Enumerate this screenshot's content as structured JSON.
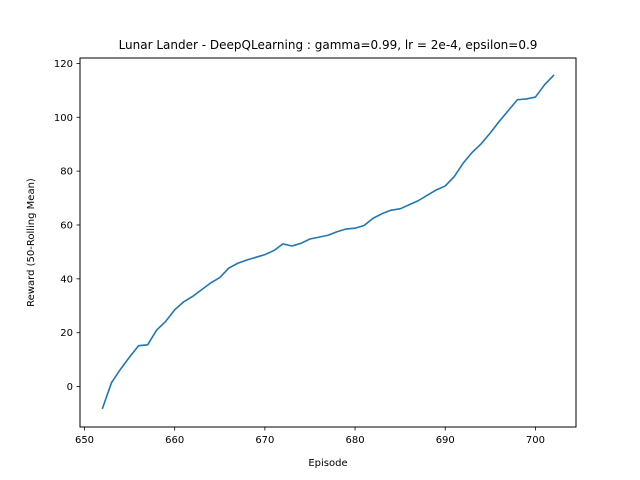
{
  "chart_data": {
    "type": "line",
    "title": "Lunar Lander - DeepQLearning : gamma=0.99, lr = 2e-4, epsilon=0.9",
    "xlabel": "Episode",
    "ylabel": "Reward (50-Rolling Mean)",
    "xlim": [
      649.5,
      704.5
    ],
    "ylim": [
      -15,
      122
    ],
    "xticks": [
      650,
      660,
      670,
      680,
      690,
      700
    ],
    "yticks": [
      0,
      20,
      40,
      60,
      80,
      100,
      120
    ],
    "grid": false,
    "legend": "none",
    "series": [
      {
        "color": "#1f77b4",
        "x": [
          652,
          653,
          654,
          655,
          656,
          657,
          658,
          659,
          660,
          661,
          662,
          663,
          664,
          665,
          666,
          667,
          668,
          669,
          670,
          671,
          672,
          673,
          674,
          675,
          676,
          677,
          678,
          679,
          680,
          681,
          682,
          683,
          684,
          685,
          686,
          687,
          688,
          689,
          690,
          691,
          692,
          693,
          694,
          695,
          696,
          697,
          698,
          699,
          700,
          701,
          702
        ],
        "y": [
          -8,
          1.5,
          6.5,
          11,
          15.2,
          15.5,
          21,
          24.2,
          28.5,
          31.5,
          33.5,
          36,
          38.5,
          40.5,
          44,
          45.8,
          47,
          48,
          49,
          50.5,
          53,
          52.2,
          53.2,
          54.8,
          55.5,
          56.2,
          57.5,
          58.5,
          58.8,
          59.8,
          62.5,
          64.2,
          65.5,
          66,
          67.5,
          69,
          71,
          73,
          74.5,
          78,
          83,
          87,
          90.2,
          94.2,
          98.5,
          102.5,
          106.5,
          106.8,
          107.5,
          112,
          115.5
        ]
      }
    ]
  }
}
